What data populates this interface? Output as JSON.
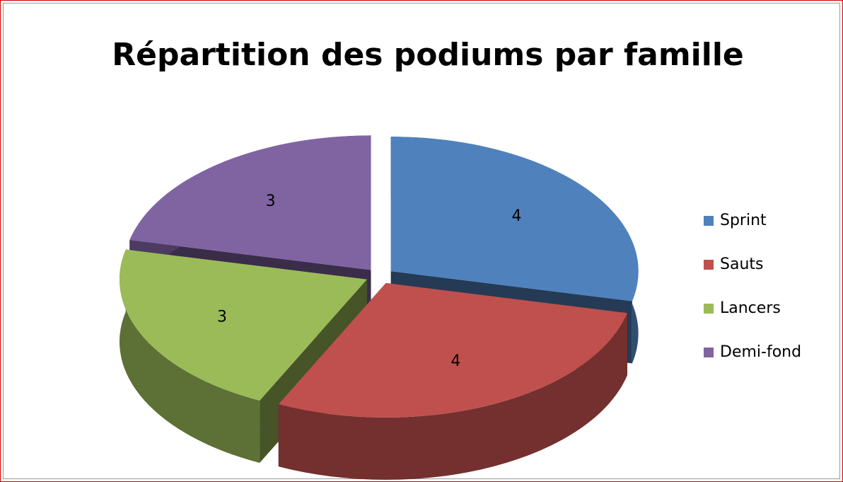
{
  "chart_data": {
    "type": "pie",
    "title": "Répartition des podiums par famille",
    "categories": [
      "Sprint",
      "Sauts",
      "Lancers",
      "Demi-fond"
    ],
    "values": [
      4,
      4,
      3,
      3
    ],
    "colors": [
      "#4f81bd",
      "#c0504d",
      "#9bbb59",
      "#8064a2"
    ],
    "legend": "right"
  }
}
